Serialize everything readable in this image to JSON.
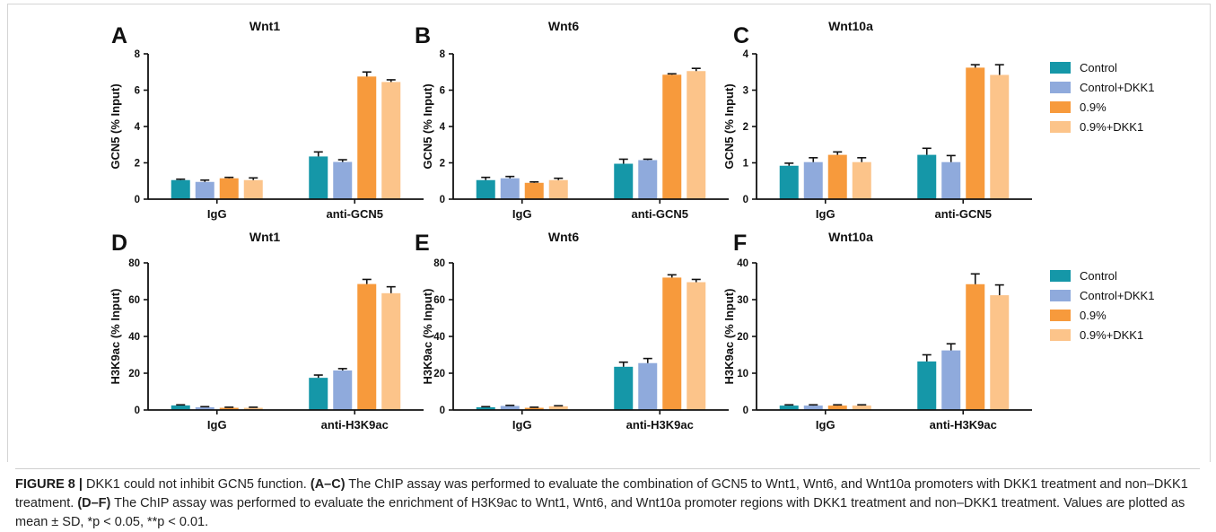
{
  "legend_entries": [
    {
      "label": "Control",
      "color": "#1597a8"
    },
    {
      "label": "Control+DKK1",
      "color": "#8faadc"
    },
    {
      "label": "0.9%",
      "color": "#f79a3c"
    },
    {
      "label": "0.9%+DKK1",
      "color": "#fcc48a"
    }
  ],
  "chart_data": [
    {
      "type": "bar",
      "panel_letter": "A",
      "title": "Wnt1",
      "ylabel": "GCN5 (% Input)",
      "categories": [
        "IgG",
        "anti-GCN5"
      ],
      "ylim": [
        0,
        8
      ],
      "yticks": [
        0,
        2,
        4,
        6,
        8
      ],
      "legend": "right",
      "series": [
        {
          "name": "Control",
          "values": [
            1.05,
            2.35
          ],
          "errors": [
            0.05,
            0.25
          ]
        },
        {
          "name": "Control+DKK1",
          "values": [
            0.95,
            2.05
          ],
          "errors": [
            0.1,
            0.12
          ]
        },
        {
          "name": "0.9%",
          "values": [
            1.15,
            6.75
          ],
          "errors": [
            0.05,
            0.25
          ]
        },
        {
          "name": "0.9%+DKK1",
          "values": [
            1.05,
            6.45
          ],
          "errors": [
            0.12,
            0.12
          ]
        }
      ]
    },
    {
      "type": "bar",
      "panel_letter": "B",
      "title": "Wnt6",
      "ylabel": "GCN5 (% Input)",
      "categories": [
        "IgG",
        "anti-GCN5"
      ],
      "ylim": [
        0,
        8
      ],
      "yticks": [
        0,
        2,
        4,
        6,
        8
      ],
      "legend": "right",
      "series": [
        {
          "name": "Control",
          "values": [
            1.05,
            1.95
          ],
          "errors": [
            0.15,
            0.25
          ]
        },
        {
          "name": "Control+DKK1",
          "values": [
            1.15,
            2.15
          ],
          "errors": [
            0.1,
            0.05
          ]
        },
        {
          "name": "0.9%",
          "values": [
            0.9,
            6.85
          ],
          "errors": [
            0.05,
            0.05
          ]
        },
        {
          "name": "0.9%+DKK1",
          "values": [
            1.05,
            7.05
          ],
          "errors": [
            0.1,
            0.15
          ]
        }
      ]
    },
    {
      "type": "bar",
      "panel_letter": "C",
      "title": "Wnt10a",
      "ylabel": "GCN5 (% Input)",
      "categories": [
        "IgG",
        "anti-GCN5"
      ],
      "ylim": [
        0,
        4
      ],
      "yticks": [
        0,
        1,
        2,
        3,
        4
      ],
      "legend": "right",
      "series": [
        {
          "name": "Control",
          "values": [
            0.92,
            1.22
          ],
          "errors": [
            0.07,
            0.18
          ]
        },
        {
          "name": "Control+DKK1",
          "values": [
            1.02,
            1.02
          ],
          "errors": [
            0.12,
            0.18
          ]
        },
        {
          "name": "0.9%",
          "values": [
            1.22,
            3.62
          ],
          "errors": [
            0.08,
            0.08
          ]
        },
        {
          "name": "0.9%+DKK1",
          "values": [
            1.02,
            3.42
          ],
          "errors": [
            0.12,
            0.28
          ]
        }
      ]
    },
    {
      "type": "bar",
      "panel_letter": "D",
      "title": "Wnt1",
      "ylabel": "H3K9ac (% Input)",
      "categories": [
        "IgG",
        "anti-H3K9ac"
      ],
      "ylim": [
        0,
        80
      ],
      "yticks": [
        0,
        20,
        40,
        60,
        80
      ],
      "legend": "right",
      "series": [
        {
          "name": "Control",
          "values": [
            2.5,
            17.5
          ],
          "errors": [
            0.3,
            1.5
          ]
        },
        {
          "name": "Control+DKK1",
          "values": [
            1.5,
            21.5
          ],
          "errors": [
            0.3,
            1.0
          ]
        },
        {
          "name": "0.9%",
          "values": [
            1.2,
            68.5
          ],
          "errors": [
            0.3,
            2.5
          ]
        },
        {
          "name": "0.9%+DKK1",
          "values": [
            1.2,
            63.5
          ],
          "errors": [
            0.3,
            3.5
          ]
        }
      ]
    },
    {
      "type": "bar",
      "panel_letter": "E",
      "title": "Wnt6",
      "ylabel": "H3K9ac (% Input)",
      "categories": [
        "IgG",
        "anti-H3K9ac"
      ],
      "ylim": [
        0,
        80
      ],
      "yticks": [
        0,
        20,
        40,
        60,
        80
      ],
      "legend": "right",
      "series": [
        {
          "name": "Control",
          "values": [
            1.5,
            23.5
          ],
          "errors": [
            0.3,
            2.5
          ]
        },
        {
          "name": "Control+DKK1",
          "values": [
            2.2,
            25.5
          ],
          "errors": [
            0.3,
            2.5
          ]
        },
        {
          "name": "0.9%",
          "values": [
            1.2,
            72.0
          ],
          "errors": [
            0.3,
            1.5
          ]
        },
        {
          "name": "0.9%+DKK1",
          "values": [
            2.0,
            69.5
          ],
          "errors": [
            0.3,
            1.5
          ]
        }
      ]
    },
    {
      "type": "bar",
      "panel_letter": "F",
      "title": "Wnt10a",
      "ylabel": "H3K9ac (% Input)",
      "categories": [
        "IgG",
        "anti-H3K9ac"
      ],
      "ylim": [
        0,
        40
      ],
      "yticks": [
        0,
        10,
        20,
        30,
        40
      ],
      "legend": "right",
      "series": [
        {
          "name": "Control",
          "values": [
            1.2,
            13.2
          ],
          "errors": [
            0.2,
            1.8
          ]
        },
        {
          "name": "Control+DKK1",
          "values": [
            1.2,
            16.2
          ],
          "errors": [
            0.2,
            1.8
          ]
        },
        {
          "name": "0.9%",
          "values": [
            1.2,
            34.2
          ],
          "errors": [
            0.2,
            2.8
          ]
        },
        {
          "name": "0.9%+DKK1",
          "values": [
            1.2,
            31.2
          ],
          "errors": [
            0.2,
            2.8
          ]
        }
      ]
    }
  ],
  "caption": {
    "label": "FIGURE 8 |",
    "intro": " DKK1 could not inhibit GCN5 function. ",
    "range1": "(A–C)",
    "text1": " The ChIP assay was performed to evaluate the combination of GCN5 to Wnt1, Wnt6, and Wnt10a promoters with DKK1 treatment and non–DKK1 treatment. ",
    "range2": "(D–F)",
    "text2": " The ChIP assay was performed to evaluate the enrichment of H3K9ac to Wnt1, Wnt6, and Wnt10a promoter regions with DKK1 treatment and non–DKK1 treatment. Values are plotted as mean ± SD, *p < 0.05, **p < 0.01."
  }
}
